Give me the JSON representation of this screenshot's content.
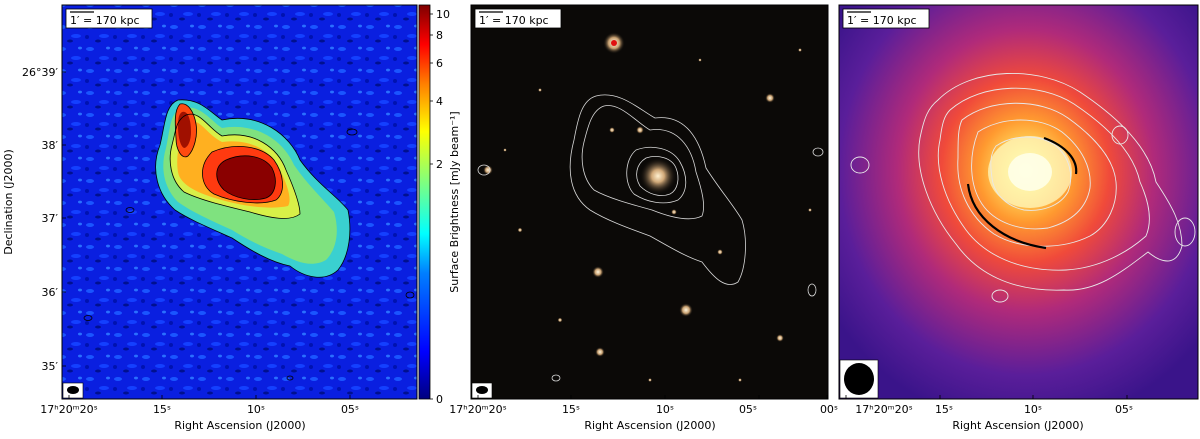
{
  "figure": {
    "panel1": {
      "scalebar": "1′ = 170 kpc",
      "y_axis_label": "Declination (J2000)",
      "x_axis_label": "Right Ascension (J2000)",
      "y_ticks": [
        "26°39′",
        "38′",
        "37′",
        "36′",
        "35′"
      ],
      "x_ticks": [
        "17ʰ20ᵐ20ˢ",
        "15ˢ",
        "10ˢ",
        "05ˢ"
      ],
      "colorbar": {
        "label": "Surface Brightness [mJy beam⁻¹]",
        "ticks": [
          "0",
          "2",
          "4",
          "6",
          "8",
          "10"
        ],
        "colormap": [
          "#00007f",
          "#0000ff",
          "#007fff",
          "#00ffff",
          "#7fff7f",
          "#ffff00",
          "#ff7f00",
          "#ff0000",
          "#7f0000"
        ]
      }
    },
    "panel2": {
      "scalebar": "1′ = 170 kpc",
      "x_axis_label": "Right Ascension (J2000)",
      "x_ticks": [
        "17ʰ20ᵐ20ˢ",
        "15ˢ",
        "10ˢ",
        "05ˢ",
        "00ˢ"
      ]
    },
    "panel3": {
      "scalebar": "1′ = 170 kpc",
      "x_axis_label": "Right Ascension (J2000)",
      "x_ticks": [
        "17ʰ20ᵐ20ˢ",
        "15ˢ",
        "10ˢ",
        "05ˢ"
      ]
    }
  }
}
